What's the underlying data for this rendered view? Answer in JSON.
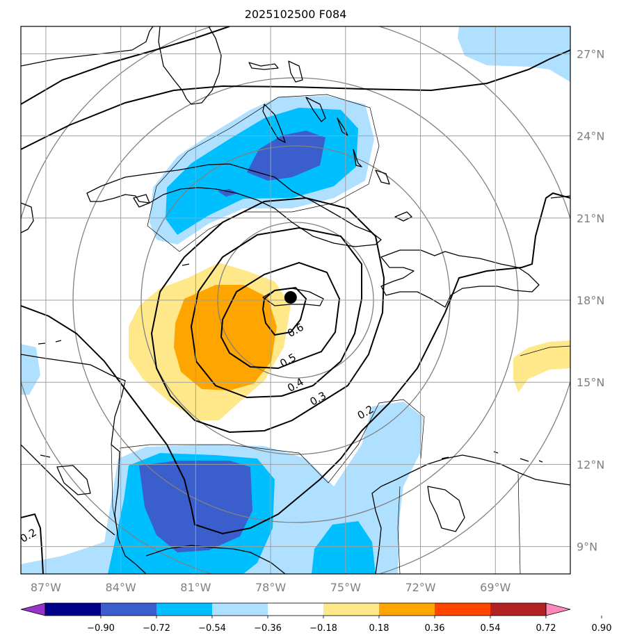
{
  "title": "2025102500 F084",
  "map": {
    "lon_range": [
      -88,
      -66
    ],
    "lat_range": [
      8,
      28
    ],
    "lon_ticks": [
      {
        "value": -87,
        "label": "87°W"
      },
      {
        "value": -84,
        "label": "84°W"
      },
      {
        "value": -81,
        "label": "81°W"
      },
      {
        "value": -78,
        "label": "78°W"
      },
      {
        "value": -75,
        "label": "75°W"
      },
      {
        "value": -72,
        "label": "72°W"
      },
      {
        "value": -69,
        "label": "69°W"
      }
    ],
    "lat_ticks": [
      {
        "value": 27,
        "label": "27°N"
      },
      {
        "value": 24,
        "label": "24°N"
      },
      {
        "value": 21,
        "label": "21°N"
      },
      {
        "value": 18,
        "label": "18°N"
      },
      {
        "value": 15,
        "label": "15°N"
      },
      {
        "value": 12,
        "label": "12°N"
      },
      {
        "value": 9,
        "label": "9°N"
      }
    ],
    "grid": true,
    "center_marker": {
      "lon": -77.2,
      "lat": 18.1
    },
    "contour_labels": [
      {
        "text": "0.6",
        "lon": -77.0,
        "lat": 16.9
      },
      {
        "text": "0.5",
        "lon": -77.3,
        "lat": 15.8
      },
      {
        "text": "0.4",
        "lon": -77.0,
        "lat": 14.9
      },
      {
        "text": "0.3",
        "lon": -76.1,
        "lat": 14.4
      },
      {
        "text": "0.2",
        "lon": -74.2,
        "lat": 13.9
      },
      {
        "text": "0.2",
        "lon": -87.7,
        "lat": 9.4
      }
    ]
  },
  "colorbar": {
    "ticks": [
      "−0.90",
      "−0.72",
      "−0.54",
      "−0.36",
      "−0.18",
      "0.18",
      "0.36",
      "0.54",
      "0.72",
      "0.90"
    ],
    "colors": [
      "#9933cc",
      "#00008b",
      "#3a5fcd",
      "#00bfff",
      "#b0e0ff",
      "#ffffff",
      "#ffe88a",
      "#ffa500",
      "#ff4500",
      "#b22222",
      "#ff88bb"
    ],
    "extend": "both"
  }
}
